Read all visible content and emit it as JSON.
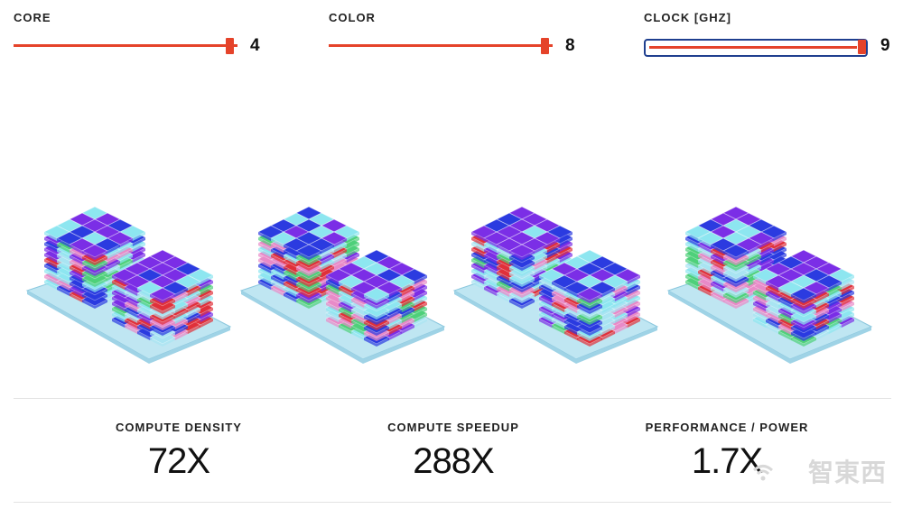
{
  "controls": {
    "core": {
      "label": "CORE",
      "value": "4",
      "fraction": 0.95
    },
    "color": {
      "label": "COLOR",
      "value": "8",
      "fraction": 0.95
    },
    "clock": {
      "label": "CLOCK [GHZ]",
      "value": "9",
      "fraction": 1.0
    }
  },
  "stacks": {
    "count": 4,
    "colors": [
      "#7b2ee6",
      "#2b3be0",
      "#8de6f0",
      "#e0303a",
      "#e88ac8",
      "#4fd07a",
      "#a9e4f2"
    ]
  },
  "metrics": [
    {
      "label": "COMPUTE DENSITY",
      "value": "72X"
    },
    {
      "label": "COMPUTE SPEEDUP",
      "value": "288X"
    },
    {
      "label": "PERFORMANCE / POWER",
      "value": "1.7X"
    }
  ],
  "watermark": "智東西"
}
